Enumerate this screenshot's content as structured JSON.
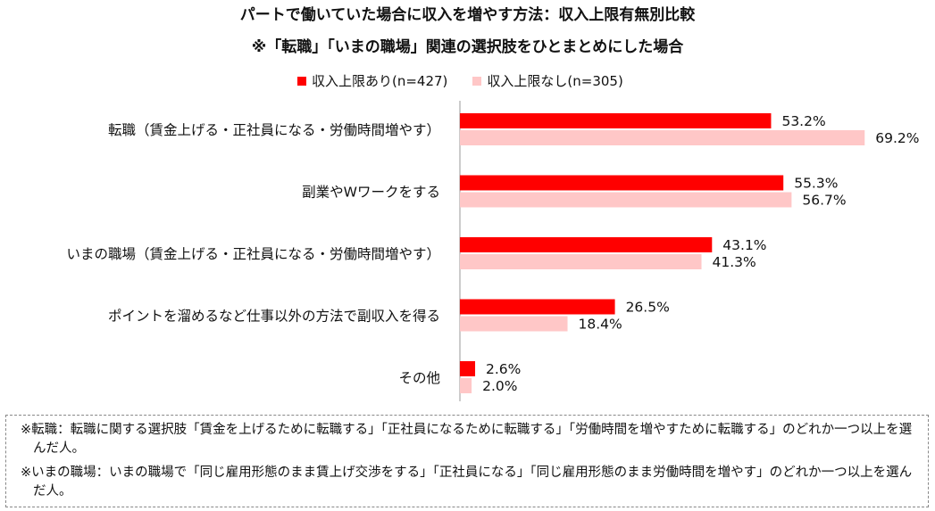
{
  "titles": {
    "main": "パートで働いていた場合に収入を増やす方法：収入上限有無別比較",
    "sub": "※「転職」「いまの職場」関連の選択肢をひとまとめにした場合"
  },
  "colors": {
    "series1": "#ff0000",
    "series2": "#ffc7c7"
  },
  "chart_data": {
    "type": "bar",
    "orientation": "horizontal",
    "categories": [
      "転職（賃金上げる・正社員になる・労働時間増やす）",
      "副業やWワークをする",
      "いまの職場（賃金上げる・正社員になる・労働時間増やす）",
      "ポイントを溜めるなど仕事以外の方法で副収入を得る",
      "その他"
    ],
    "series": [
      {
        "name": "収入上限あり(n=427)",
        "values": [
          53.2,
          55.3,
          43.1,
          26.5,
          2.6
        ],
        "labels": [
          "53.2%",
          "55.3%",
          "43.1%",
          "26.5%",
          "2.6%"
        ]
      },
      {
        "name": "収入上限なし(n=305)",
        "values": [
          69.2,
          56.7,
          41.3,
          18.4,
          2.0
        ],
        "labels": [
          "69.2%",
          "56.7%",
          "41.3%",
          "18.4%",
          "2.0%"
        ]
      }
    ],
    "unit": "%",
    "xlim": [
      0,
      100
    ],
    "legend": "top",
    "grid": false
  },
  "notes": [
    "※転職：転職に関する選択肢「賃金を上げるために転職する」「正社員になるために転職する」「労働時間を増やすために転職する」のどれか一つ以上を選んだ人。",
    "※いまの職場：いまの職場で「同じ雇用形態のまま賃上げ交渉をする」「正社員になる」「同じ雇用形態のまま労働時間を増やす」のどれか一つ以上を選んだ人。"
  ]
}
